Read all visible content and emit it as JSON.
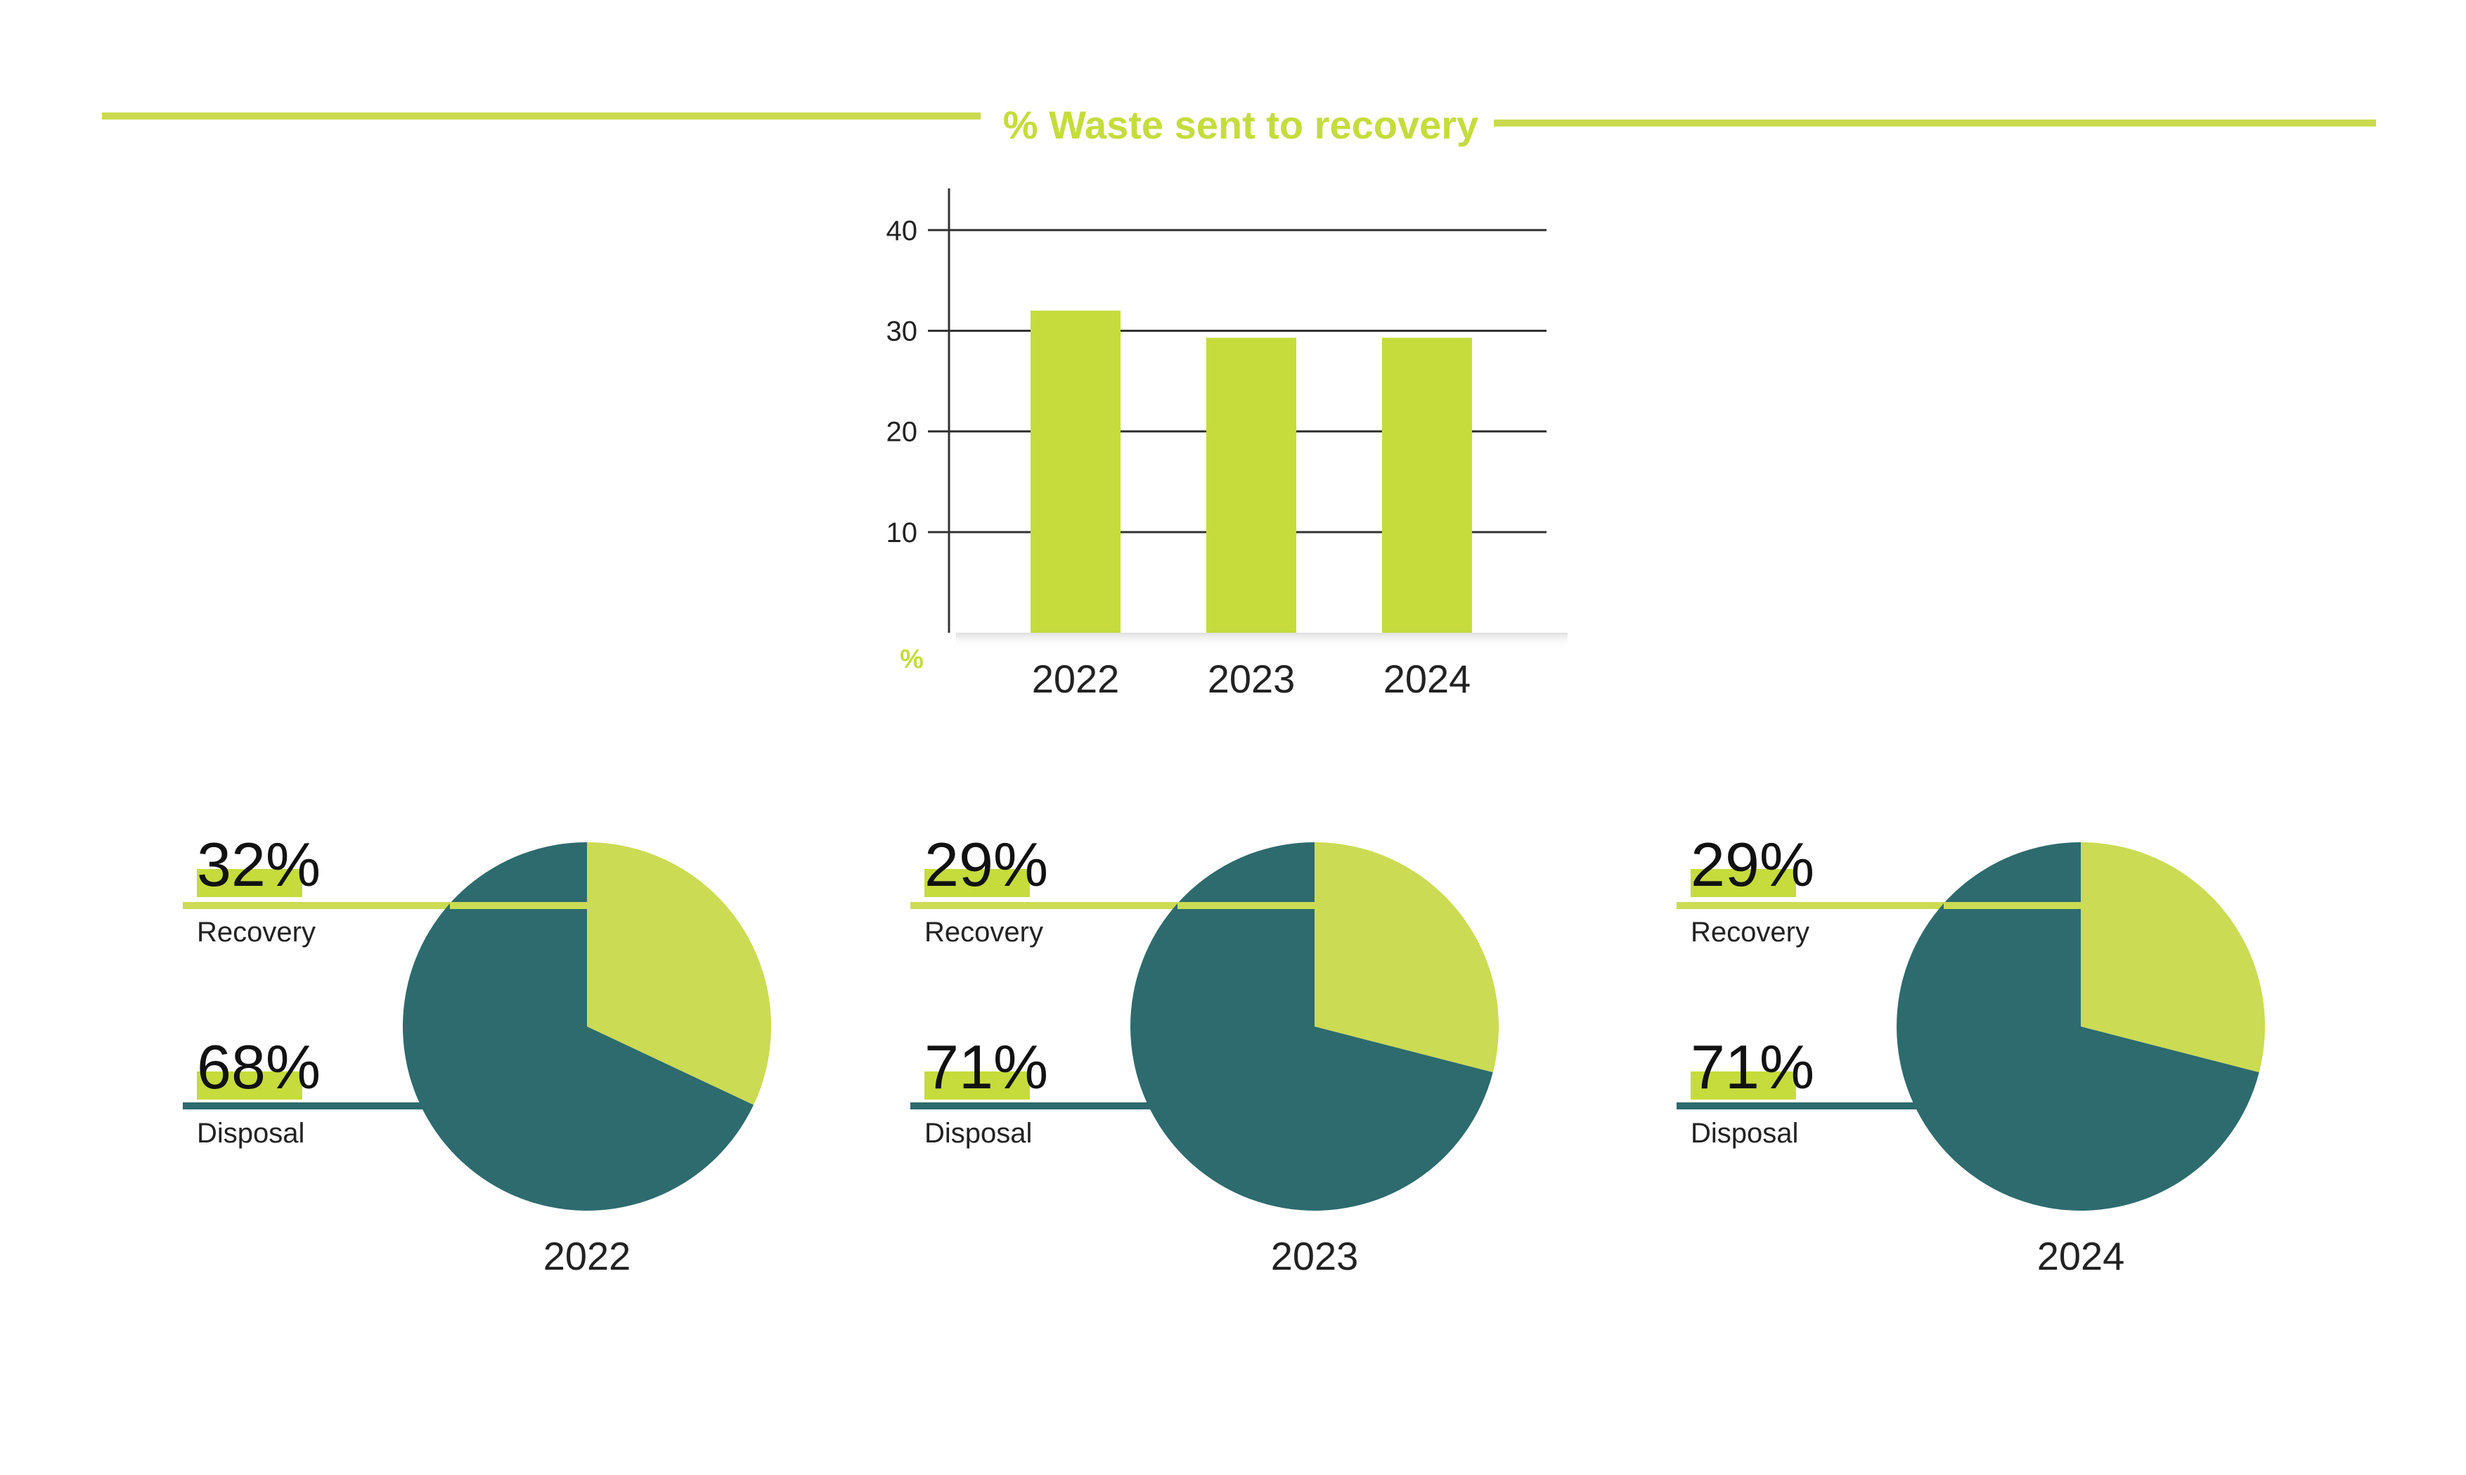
{
  "title": "% Waste sent to recovery",
  "colors": {
    "accent": "#c5dc3c",
    "pie_recovery": "#cbdb53",
    "pie_disposal": "#2d6b6e",
    "grid": "#333333"
  },
  "chart_data": [
    {
      "type": "bar",
      "title": "% Waste sent to recovery",
      "categories": [
        "2022",
        "2023",
        "2024"
      ],
      "values": [
        32,
        29.3,
        29.3
      ],
      "ylabel": "%",
      "ylim": [
        0,
        44
      ],
      "yticks": [
        10,
        20,
        30,
        40
      ],
      "grid": true
    },
    {
      "type": "pie",
      "year": "2022",
      "labels": [
        "Recovery",
        "Disposal"
      ],
      "values": [
        32,
        68
      ],
      "display": [
        "32%",
        "68%"
      ]
    },
    {
      "type": "pie",
      "year": "2023",
      "labels": [
        "Recovery",
        "Disposal"
      ],
      "values": [
        29,
        71
      ],
      "display": [
        "29%",
        "71%"
      ]
    },
    {
      "type": "pie",
      "year": "2024",
      "labels": [
        "Recovery",
        "Disposal"
      ],
      "values": [
        29,
        71
      ],
      "display": [
        "29%",
        "71%"
      ]
    }
  ]
}
